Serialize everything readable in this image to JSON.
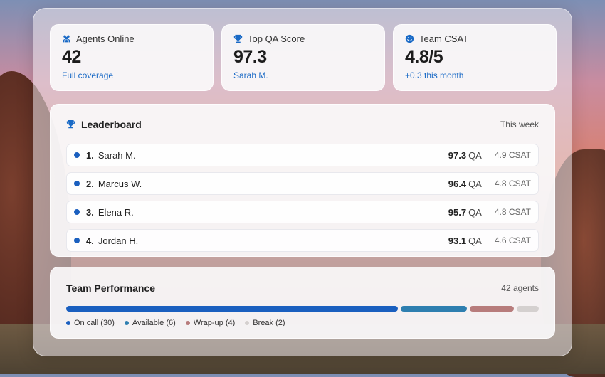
{
  "stats": [
    {
      "label": "Agents Online",
      "value": "42",
      "sub": "Full coverage",
      "icon": "users-icon"
    },
    {
      "label": "Top QA Score",
      "value": "97.3",
      "sub": "Sarah M.",
      "icon": "trophy-icon"
    },
    {
      "label": "Team CSAT",
      "value": "4.8/5",
      "sub": "+0.3 this month",
      "icon": "smiley-icon"
    }
  ],
  "leaderboard": {
    "title": "Leaderboard",
    "period": "This week",
    "qa_unit": "QA",
    "rows": [
      {
        "rank": "1.",
        "name": "Sarah M.",
        "qa": "97.3",
        "csat": "4.9 CSAT"
      },
      {
        "rank": "2.",
        "name": "Marcus W.",
        "qa": "96.4",
        "csat": "4.8 CSAT"
      },
      {
        "rank": "3.",
        "name": "Elena R.",
        "qa": "95.7",
        "csat": "4.8 CSAT"
      },
      {
        "rank": "4.",
        "name": "Jordan H.",
        "qa": "93.1",
        "csat": "4.6 CSAT"
      }
    ]
  },
  "performance": {
    "title": "Team Performance",
    "total": "42 agents",
    "segments": [
      {
        "label": "On call (30)",
        "count": 30,
        "color": "#1a5fbf"
      },
      {
        "label": "Available (6)",
        "count": 6,
        "color": "#2e7fb0"
      },
      {
        "label": "Wrap-up (4)",
        "count": 4,
        "color": "#b77c7c"
      },
      {
        "label": "Break (2)",
        "count": 2,
        "color": "#d4d0cf"
      }
    ]
  },
  "colors": {
    "accent": "#1a6ac6"
  }
}
